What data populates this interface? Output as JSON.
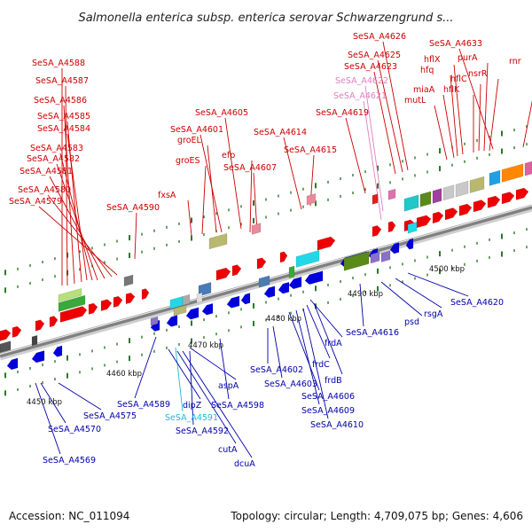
{
  "title": "Salmonella enterica subsp. enterica serovar Schwarzengrund s...",
  "footer": {
    "accession": "Accession: NC_011094",
    "topology": "Topology: circular; Length: 4,709,075 bp; Genes: 4,606"
  },
  "kbp_labels": [
    "4450 kbp",
    "4460 kbp",
    "4470 kbp",
    "4480 kbp",
    "4490 kbp",
    "4500 kbp"
  ],
  "colors": {
    "forward_label": "#cc0000",
    "reverse_label": "#0000aa",
    "forward_gene": "#ee0000",
    "reverse_gene": "#0000dd",
    "pink_label": "#e080c0",
    "cyan_label": "#20b8d8"
  },
  "top_labels": [
    "SeSA_A4588",
    "SeSA_A4587",
    "SeSA_A4586",
    "SeSA_A4585",
    "SeSA_A4584",
    "SeSA_A4583",
    "SeSA_A4582",
    "SeSA_A4581",
    "SeSA_A4580",
    "SeSA_A4579",
    "SeSA_A4590",
    "fxsA",
    "groES",
    "groEL",
    "SeSA_A4601",
    "SeSA_A4605",
    "efp",
    "SeSA_A4607",
    "SeSA_A4614",
    "SeSA_A4615",
    "SeSA_A4619",
    "SeSA_A4621",
    "SeSA_A4622",
    "SeSA_A4623",
    "SeSA_A4625",
    "SeSA_A4626",
    "mutL",
    "miaA",
    "hfq",
    "hflX",
    "hflK",
    "hflC",
    "nsrR",
    "purA",
    "SeSA_A4633",
    "rnr"
  ],
  "bottom_labels": [
    "SeSA_A4569",
    "SeSA_A4570",
    "SeSA_A4575",
    "SeSA_A4589",
    "SeSA_A4591",
    "SeSA_A4592",
    "dipZ",
    "cutA",
    "dcuA",
    "aspA",
    "SeSA_A4598",
    "SeSA_A4602",
    "SeSA_A4603",
    "SeSA_A4606",
    "SeSA_A4609",
    "SeSA_A4610",
    "frdA",
    "frdB",
    "frdC",
    "SeSA_A4616",
    "psd",
    "rsgA",
    "SeSA_A4620"
  ]
}
